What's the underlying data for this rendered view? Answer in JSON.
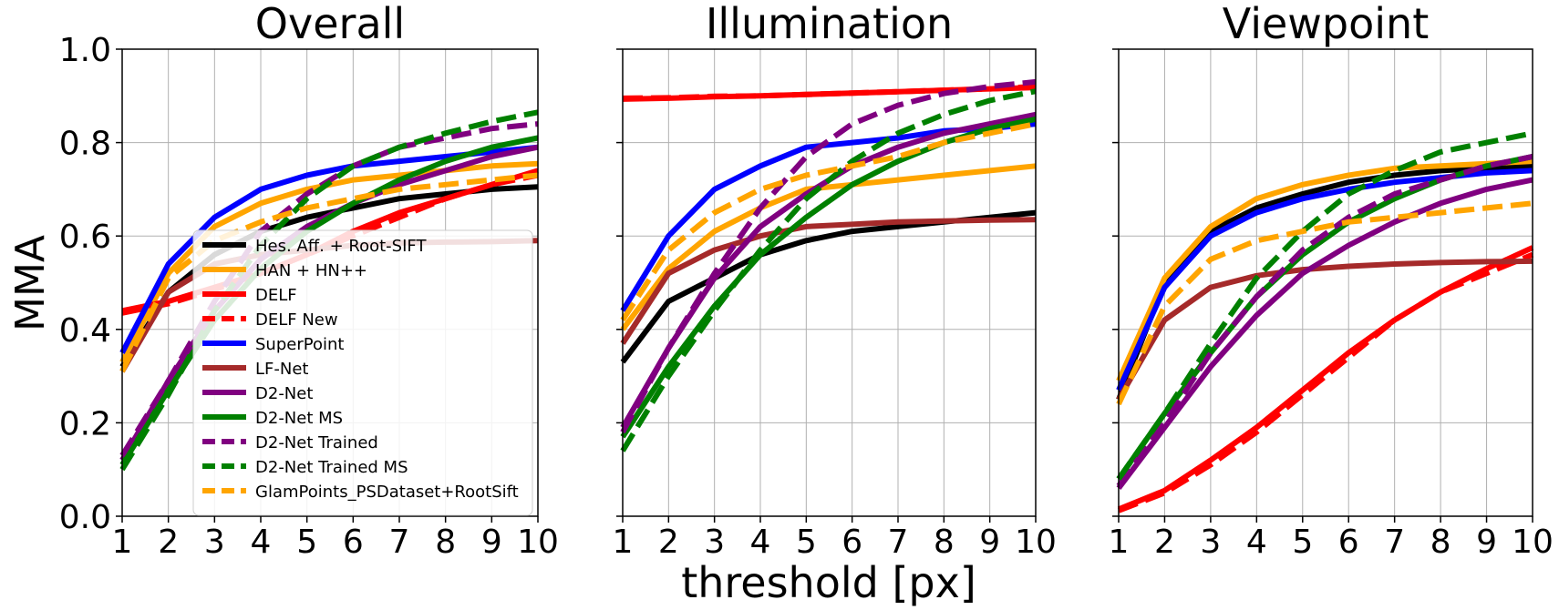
{
  "figure": {
    "ylabel": "MMA",
    "xlabel": "threshold [px]"
  },
  "chart_data": [
    {
      "type": "line",
      "title": "Overall",
      "xlim": [
        1,
        10
      ],
      "ylim": [
        0.0,
        1.0
      ],
      "x": [
        1,
        2,
        3,
        4,
        5,
        6,
        7,
        8,
        9,
        10
      ],
      "xticks": [
        "1",
        "2",
        "3",
        "4",
        "5",
        "6",
        "7",
        "8",
        "9",
        "10"
      ],
      "yticks": [
        "0.0",
        "0.2",
        "0.4",
        "0.6",
        "0.8",
        "1.0"
      ],
      "grid": true,
      "legend_position": "lower-left",
      "series": [
        {
          "name": "Hes. Aff. + Root-SIFT",
          "color": "#000000",
          "dash": "solid",
          "values": [
            0.32,
            0.48,
            0.56,
            0.61,
            0.64,
            0.66,
            0.68,
            0.69,
            0.7,
            0.705
          ]
        },
        {
          "name": "HAN + HN++",
          "color": "#ffa500",
          "dash": "solid",
          "values": [
            0.33,
            0.52,
            0.62,
            0.67,
            0.7,
            0.72,
            0.73,
            0.74,
            0.75,
            0.755
          ]
        },
        {
          "name": "DELF",
          "color": "#ff0000",
          "dash": "solid",
          "values": [
            0.44,
            0.46,
            0.49,
            0.52,
            0.56,
            0.61,
            0.65,
            0.68,
            0.71,
            0.74
          ]
        },
        {
          "name": "DELF New",
          "color": "#ff0000",
          "dash": "dashed",
          "values": [
            0.435,
            0.455,
            0.485,
            0.52,
            0.56,
            0.6,
            0.64,
            0.68,
            0.71,
            0.73
          ]
        },
        {
          "name": "SuperPoint",
          "color": "#0000ff",
          "dash": "solid",
          "values": [
            0.35,
            0.54,
            0.64,
            0.7,
            0.73,
            0.75,
            0.76,
            0.77,
            0.78,
            0.79
          ]
        },
        {
          "name": "LF-Net",
          "color": "#a52a2a",
          "dash": "solid",
          "values": [
            0.31,
            0.48,
            0.54,
            0.56,
            0.57,
            0.58,
            0.585,
            0.587,
            0.588,
            0.59
          ]
        },
        {
          "name": "D2-Net",
          "color": "#800080",
          "dash": "solid",
          "values": [
            0.12,
            0.29,
            0.44,
            0.55,
            0.62,
            0.67,
            0.71,
            0.74,
            0.77,
            0.79
          ]
        },
        {
          "name": "D2-Net MS",
          "color": "#008000",
          "dash": "solid",
          "values": [
            0.11,
            0.27,
            0.42,
            0.53,
            0.61,
            0.67,
            0.72,
            0.76,
            0.79,
            0.81
          ]
        },
        {
          "name": "D2-Net Trained",
          "color": "#800080",
          "dash": "dashed",
          "values": [
            0.13,
            0.29,
            0.46,
            0.61,
            0.69,
            0.75,
            0.79,
            0.81,
            0.83,
            0.84
          ]
        },
        {
          "name": "D2-Net Trained MS",
          "color": "#008000",
          "dash": "dashed",
          "values": [
            0.1,
            0.26,
            0.44,
            0.58,
            0.68,
            0.75,
            0.79,
            0.82,
            0.845,
            0.865
          ]
        },
        {
          "name": "GlamPoints_PSDataset+RootSift",
          "color": "#ffa500",
          "dash": "dashed",
          "values": [
            0.31,
            0.51,
            0.59,
            0.63,
            0.66,
            0.68,
            0.7,
            0.71,
            0.72,
            0.73
          ]
        }
      ]
    },
    {
      "type": "line",
      "title": "Illumination",
      "xlim": [
        1,
        10
      ],
      "ylim": [
        0.0,
        1.0
      ],
      "x": [
        1,
        2,
        3,
        4,
        5,
        6,
        7,
        8,
        9,
        10
      ],
      "xticks": [
        "1",
        "2",
        "3",
        "4",
        "5",
        "6",
        "7",
        "8",
        "9",
        "10"
      ],
      "grid": true,
      "series": [
        {
          "name": "Hes. Aff. + Root-SIFT",
          "color": "#000000",
          "dash": "solid",
          "values": [
            0.33,
            0.46,
            0.51,
            0.56,
            0.59,
            0.61,
            0.62,
            0.63,
            0.64,
            0.65
          ]
        },
        {
          "name": "HAN + HN++",
          "color": "#ffa500",
          "dash": "solid",
          "values": [
            0.4,
            0.53,
            0.61,
            0.66,
            0.7,
            0.71,
            0.72,
            0.73,
            0.74,
            0.75
          ]
        },
        {
          "name": "DELF",
          "color": "#ff0000",
          "dash": "solid",
          "values": [
            0.893,
            0.895,
            0.898,
            0.9,
            0.903,
            0.906,
            0.909,
            0.912,
            0.915,
            0.918
          ]
        },
        {
          "name": "DELF New",
          "color": "#ff0000",
          "dash": "dashed",
          "values": [
            0.895,
            0.896,
            0.899,
            0.9,
            0.903,
            0.906,
            0.909,
            0.912,
            0.915,
            0.92
          ]
        },
        {
          "name": "SuperPoint",
          "color": "#0000ff",
          "dash": "solid",
          "values": [
            0.44,
            0.6,
            0.7,
            0.75,
            0.79,
            0.8,
            0.81,
            0.825,
            0.83,
            0.84
          ]
        },
        {
          "name": "LF-Net",
          "color": "#a52a2a",
          "dash": "solid",
          "values": [
            0.37,
            0.52,
            0.57,
            0.6,
            0.62,
            0.625,
            0.63,
            0.632,
            0.634,
            0.635
          ]
        },
        {
          "name": "D2-Net",
          "color": "#800080",
          "dash": "solid",
          "values": [
            0.19,
            0.36,
            0.51,
            0.62,
            0.69,
            0.75,
            0.79,
            0.82,
            0.84,
            0.86
          ]
        },
        {
          "name": "D2-Net MS",
          "color": "#008000",
          "dash": "solid",
          "values": [
            0.17,
            0.32,
            0.45,
            0.56,
            0.64,
            0.71,
            0.76,
            0.8,
            0.83,
            0.85
          ]
        },
        {
          "name": "D2-Net Trained",
          "color": "#800080",
          "dash": "dashed",
          "values": [
            0.18,
            0.36,
            0.52,
            0.66,
            0.77,
            0.84,
            0.88,
            0.905,
            0.92,
            0.93
          ]
        },
        {
          "name": "D2-Net Trained MS",
          "color": "#008000",
          "dash": "dashed",
          "values": [
            0.14,
            0.3,
            0.44,
            0.57,
            0.68,
            0.76,
            0.82,
            0.86,
            0.89,
            0.91
          ]
        },
        {
          "name": "GlamPoints_PSDataset+RootSift",
          "color": "#ffa500",
          "dash": "dashed",
          "values": [
            0.42,
            0.57,
            0.65,
            0.7,
            0.73,
            0.75,
            0.77,
            0.8,
            0.82,
            0.84
          ]
        }
      ]
    },
    {
      "type": "line",
      "title": "Viewpoint",
      "xlim": [
        1,
        10
      ],
      "ylim": [
        0.0,
        1.0
      ],
      "x": [
        1,
        2,
        3,
        4,
        5,
        6,
        7,
        8,
        9,
        10
      ],
      "xticks": [
        "1",
        "2",
        "3",
        "4",
        "5",
        "6",
        "7",
        "8",
        "9",
        "10"
      ],
      "grid": true,
      "series": [
        {
          "name": "Hes. Aff. + Root-SIFT",
          "color": "#000000",
          "dash": "solid",
          "values": [
            0.25,
            0.5,
            0.61,
            0.66,
            0.69,
            0.715,
            0.73,
            0.74,
            0.745,
            0.75
          ]
        },
        {
          "name": "HAN + HN++",
          "color": "#ffa500",
          "dash": "solid",
          "values": [
            0.29,
            0.51,
            0.62,
            0.68,
            0.71,
            0.73,
            0.745,
            0.75,
            0.755,
            0.76
          ]
        },
        {
          "name": "DELF",
          "color": "#ff0000",
          "dash": "solid",
          "values": [
            0.015,
            0.055,
            0.12,
            0.19,
            0.27,
            0.35,
            0.42,
            0.48,
            0.53,
            0.575
          ]
        },
        {
          "name": "DELF New",
          "color": "#ff0000",
          "dash": "dashed",
          "values": [
            0.012,
            0.05,
            0.11,
            0.18,
            0.26,
            0.34,
            0.42,
            0.48,
            0.52,
            0.56
          ]
        },
        {
          "name": "SuperPoint",
          "color": "#0000ff",
          "dash": "solid",
          "values": [
            0.27,
            0.49,
            0.6,
            0.65,
            0.68,
            0.7,
            0.715,
            0.725,
            0.735,
            0.74
          ]
        },
        {
          "name": "LF-Net",
          "color": "#a52a2a",
          "dash": "solid",
          "values": [
            0.25,
            0.42,
            0.49,
            0.515,
            0.528,
            0.535,
            0.54,
            0.543,
            0.545,
            0.546
          ]
        },
        {
          "name": "D2-Net",
          "color": "#800080",
          "dash": "solid",
          "values": [
            0.06,
            0.19,
            0.32,
            0.43,
            0.52,
            0.58,
            0.63,
            0.67,
            0.7,
            0.72
          ]
        },
        {
          "name": "D2-Net MS",
          "color": "#008000",
          "dash": "solid",
          "values": [
            0.08,
            0.22,
            0.35,
            0.47,
            0.56,
            0.63,
            0.68,
            0.72,
            0.75,
            0.77
          ]
        },
        {
          "name": "D2-Net Trained",
          "color": "#800080",
          "dash": "dashed",
          "values": [
            0.065,
            0.2,
            0.35,
            0.47,
            0.57,
            0.64,
            0.69,
            0.72,
            0.75,
            0.77
          ]
        },
        {
          "name": "D2-Net Trained MS",
          "color": "#008000",
          "dash": "dashed",
          "values": [
            0.08,
            0.22,
            0.37,
            0.51,
            0.61,
            0.69,
            0.74,
            0.78,
            0.8,
            0.82
          ]
        },
        {
          "name": "GlamPoints_PSDataset+RootSift",
          "color": "#ffa500",
          "dash": "dashed",
          "values": [
            0.24,
            0.45,
            0.55,
            0.59,
            0.61,
            0.63,
            0.64,
            0.65,
            0.66,
            0.67
          ]
        }
      ]
    }
  ]
}
